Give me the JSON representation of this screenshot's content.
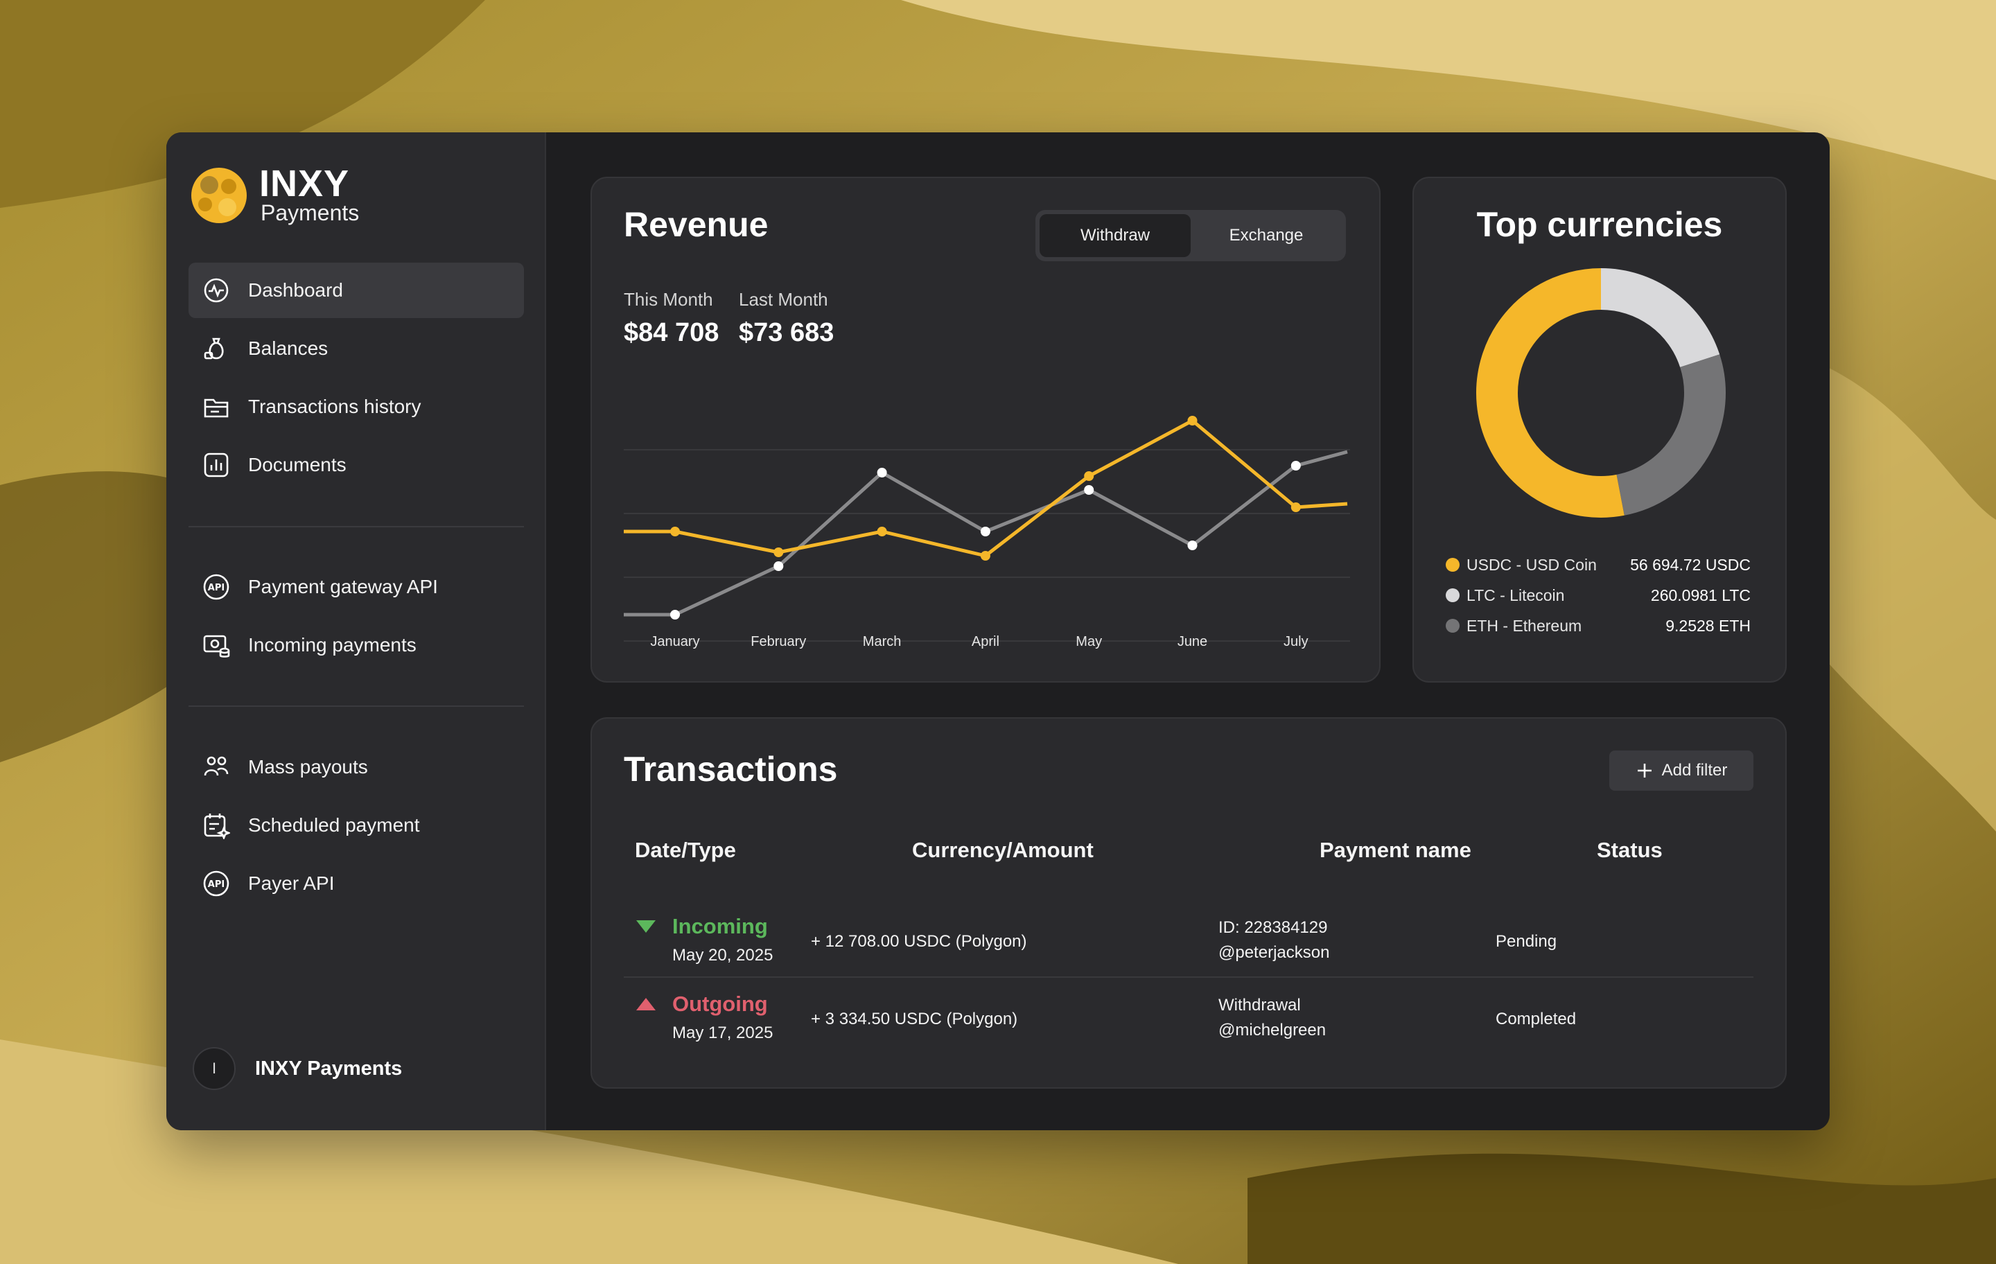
{
  "app": {
    "logo_title": "INXY",
    "logo_subtitle": "Payments"
  },
  "sidebar": {
    "group1": [
      {
        "label": "Dashboard",
        "icon": "activity-icon",
        "active": true
      },
      {
        "label": "Balances",
        "icon": "money-bag-icon"
      },
      {
        "label": "Transactions history",
        "icon": "folder-icon"
      },
      {
        "label": "Documents",
        "icon": "report-icon"
      }
    ],
    "group2": [
      {
        "label": "Payment gateway API",
        "icon": "api-icon"
      },
      {
        "label": "Incoming payments",
        "icon": "cash-icon"
      }
    ],
    "group3": [
      {
        "label": "Mass payouts",
        "icon": "users-icon"
      },
      {
        "label": "Scheduled payment",
        "icon": "calendar-icon"
      },
      {
        "label": "Payer API",
        "icon": "api-icon"
      }
    ],
    "user": {
      "initial": "I",
      "name": "INXY Payments"
    }
  },
  "revenue": {
    "title": "Revenue",
    "tabs": [
      {
        "label": "Withdraw",
        "active": true
      },
      {
        "label": "Exchange",
        "active": false
      }
    ],
    "this_month_label": "This Month",
    "this_month_value": "$84 708",
    "last_month_label": "Last Month",
    "last_month_value": "$73 683"
  },
  "chart_data": {
    "type": "line",
    "categories": [
      "January",
      "February",
      "March",
      "April",
      "May",
      "June",
      "July"
    ],
    "series": [
      {
        "color": "#f5b72a",
        "values": [
          58,
          52,
          58,
          51,
          74,
          90,
          65
        ],
        "start": 58,
        "end": 66
      },
      {
        "color": "#8a8a8c",
        "values": [
          34,
          48,
          75,
          58,
          70,
          54,
          77
        ],
        "start": 34,
        "end": 81
      }
    ],
    "ylim": [
      20,
      100
    ],
    "grid": true,
    "title": "",
    "xlabel": "",
    "ylabel": ""
  },
  "top_currencies": {
    "title": "Top currencies",
    "items": [
      {
        "name": "USDC - USD Coin",
        "value": "56 694.72 USDC",
        "color": "#f5b72a",
        "share": 0.53
      },
      {
        "name": "LTC - Litecoin",
        "value": "260.0981 LTC",
        "color": "#d9d9db",
        "share": 0.2
      },
      {
        "name": "ETH - Ethereum",
        "value": "9.2528 ETH",
        "color": "#747476",
        "share": 0.27
      }
    ]
  },
  "transactions": {
    "title": "Transactions",
    "add_filter_label": "Add filter",
    "columns": [
      "Date/Type",
      "Currency/Amount",
      "Payment name",
      "Status"
    ],
    "rows": [
      {
        "type": "Incoming",
        "date": "May 20, 2025",
        "amount": "+ 12 708.00 USDC (Polygon)",
        "name_line1": "ID: 228384129",
        "name_line2": "@peterjackson",
        "status": "Pending",
        "color": "#5cb85c"
      },
      {
        "type": "Outgoing",
        "date": "May 17, 2025",
        "amount": "+ 3 334.50 USDC (Polygon)",
        "name_line1": "Withdrawal",
        "name_line2": "@michelgreen",
        "status": "Completed",
        "color": "#e0606e"
      }
    ]
  }
}
